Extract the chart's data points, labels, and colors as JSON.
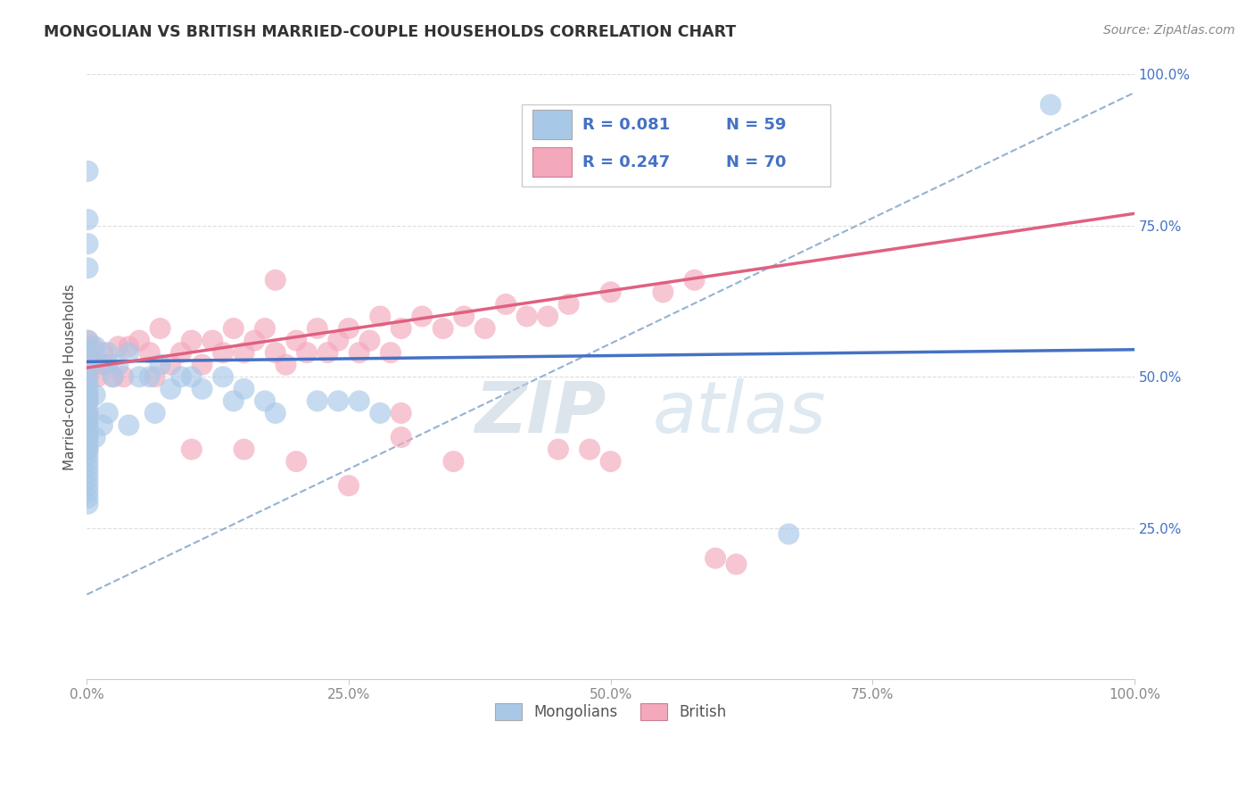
{
  "title": "MONGOLIAN VS BRITISH MARRIED-COUPLE HOUSEHOLDS CORRELATION CHART",
  "source": "Source: ZipAtlas.com",
  "ylabel": "Married-couple Households",
  "xlim": [
    0,
    1
  ],
  "ylim": [
    0,
    1
  ],
  "xticks": [
    0.0,
    0.25,
    0.5,
    0.75,
    1.0
  ],
  "xticklabels": [
    "0.0%",
    "25.0%",
    "50.0%",
    "75.0%",
    "100.0%"
  ],
  "yticks_right": [
    0.25,
    0.5,
    0.75,
    1.0
  ],
  "yticklabels_right": [
    "25.0%",
    "50.0%",
    "75.0%",
    "100.0%"
  ],
  "mongolian_color": "#a8c8e8",
  "british_color": "#f4a8bc",
  "mongolian_line_color": "#4472c4",
  "british_line_color": "#e06080",
  "dashed_line_color": "#88aacc",
  "background_color": "#ffffff",
  "grid_color": "#dddddd",
  "watermark_color": "#c8dced",
  "right_tick_color": "#4472c4",
  "title_color": "#333333",
  "source_color": "#888888",
  "tick_label_color": "#888888",
  "mongolian_R": 0.081,
  "mongolian_N": 59,
  "british_R": 0.247,
  "british_N": 70,
  "mong_line_x0": 0.0,
  "mong_line_y0": 0.525,
  "mong_line_x1": 1.0,
  "mong_line_y1": 0.545,
  "brit_line_x0": 0.0,
  "brit_line_y0": 0.515,
  "brit_line_x1": 1.0,
  "brit_line_y1": 0.77,
  "dash_line_x0": 0.0,
  "dash_line_y0": 0.14,
  "dash_line_x1": 1.0,
  "dash_line_y1": 0.97
}
